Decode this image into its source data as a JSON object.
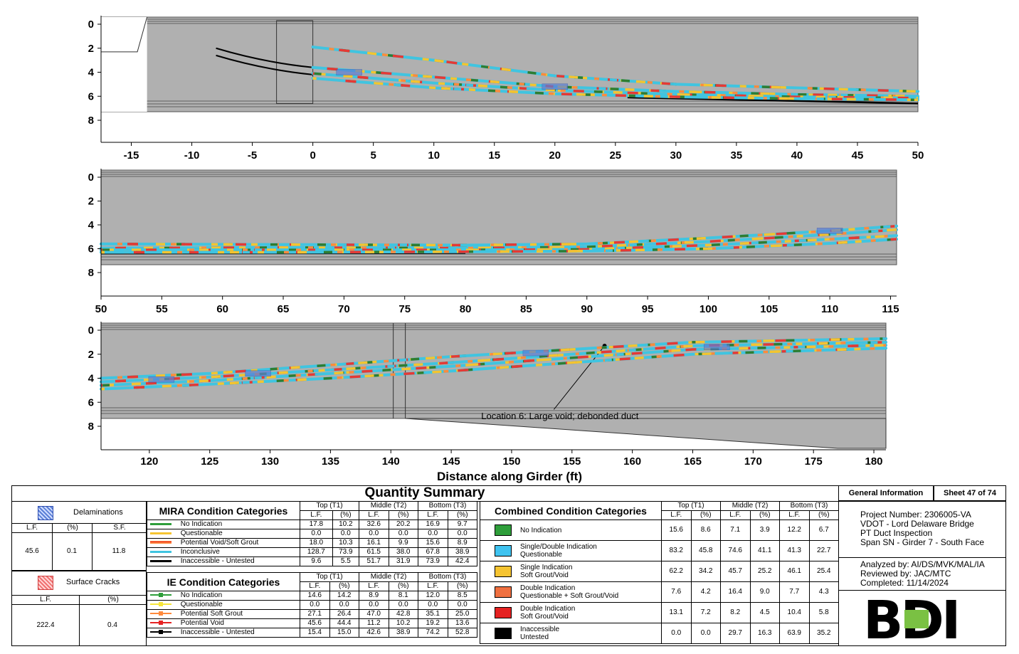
{
  "chart_data": [
    {
      "type": "line",
      "panel": "Span SN - Girder 7 - South Face (part 1)",
      "x_ticks": [
        "-15",
        "-10",
        "-5",
        "0",
        "5",
        "10",
        "15",
        "20",
        "25",
        "30",
        "35",
        "40",
        "45",
        "50"
      ],
      "y_ticks": [
        "0",
        "2",
        "4",
        "6",
        "8"
      ],
      "xlim": [
        -17.5,
        50
      ],
      "ylim": [
        0,
        9.5
      ],
      "y_inverted": true,
      "series": [
        {
          "values": [
            [
              0,
              1.9
            ],
            [
              10,
              3.0
            ],
            [
              20,
              4.3
            ],
            [
              30,
              5.0
            ],
            [
              40,
              5.3
            ],
            [
              50,
              5.6
            ]
          ]
        },
        {
          "values": [
            [
              0,
              3.6
            ],
            [
              10,
              4.4
            ],
            [
              20,
              5.2
            ],
            [
              30,
              5.6
            ],
            [
              40,
              5.85
            ],
            [
              50,
              6.0
            ]
          ]
        },
        {
          "values": [
            [
              0,
              4.1
            ],
            [
              10,
              4.9
            ],
            [
              20,
              5.5
            ],
            [
              30,
              5.85
            ],
            [
              40,
              6.05
            ],
            [
              50,
              6.15
            ]
          ]
        },
        {
          "values": [
            [
              0,
              4.5
            ],
            [
              10,
              5.3
            ],
            [
              20,
              5.8
            ],
            [
              30,
              6.05
            ],
            [
              40,
              6.2
            ],
            [
              50,
              6.3
            ]
          ]
        }
      ]
    },
    {
      "type": "line",
      "panel": "Span SN - Girder 7 - South Face (part 2)",
      "x_ticks": [
        "50",
        "55",
        "60",
        "65",
        "70",
        "75",
        "80",
        "85",
        "90",
        "95",
        "100",
        "105",
        "110",
        "115"
      ],
      "y_ticks": [
        "0",
        "2",
        "4",
        "6",
        "8"
      ],
      "xlim": [
        50,
        115.5
      ],
      "ylim": [
        0,
        9.5
      ],
      "y_inverted": true,
      "series": [
        {
          "values": [
            [
              50,
              5.6
            ],
            [
              65,
              5.65
            ],
            [
              80,
              5.7
            ],
            [
              90,
              5.6
            ],
            [
              100,
              5.1
            ],
            [
              110,
              4.5
            ],
            [
              115.5,
              4.1
            ]
          ]
        },
        {
          "values": [
            [
              50,
              5.95
            ],
            [
              65,
              5.9
            ],
            [
              80,
              5.95
            ],
            [
              90,
              5.85
            ],
            [
              100,
              5.4
            ],
            [
              110,
              4.8
            ],
            [
              115.5,
              4.4
            ]
          ]
        },
        {
          "values": [
            [
              50,
              6.1
            ],
            [
              65,
              6.1
            ],
            [
              80,
              6.1
            ],
            [
              90,
              6.05
            ],
            [
              100,
              5.7
            ],
            [
              110,
              5.2
            ],
            [
              115.5,
              4.9
            ]
          ]
        },
        {
          "values": [
            [
              50,
              6.3
            ],
            [
              65,
              6.3
            ],
            [
              80,
              6.25
            ],
            [
              90,
              6.2
            ],
            [
              100,
              6.0
            ],
            [
              110,
              5.55
            ],
            [
              115.5,
              5.2
            ]
          ]
        }
      ]
    },
    {
      "type": "line",
      "panel": "Span SN - Girder 7 - South Face (part 3)",
      "x_ticks": [
        "120",
        "125",
        "130",
        "135",
        "140",
        "145",
        "150",
        "155",
        "160",
        "165",
        "170",
        "175",
        "180"
      ],
      "y_ticks": [
        "0",
        "2",
        "4",
        "6",
        "8"
      ],
      "xlim": [
        116,
        181
      ],
      "ylim": [
        0,
        9.5
      ],
      "y_inverted": true,
      "annotation": "Location 6: Large void; debonded duct",
      "series": [
        {
          "values": [
            [
              116,
              4.0
            ],
            [
              125,
              3.6
            ],
            [
              135,
              2.9
            ],
            [
              145,
              2.2
            ],
            [
              155,
              1.6
            ],
            [
              165,
              1.0
            ],
            [
              181,
              0.7
            ]
          ]
        },
        {
          "values": [
            [
              116,
              4.3
            ],
            [
              125,
              3.9
            ],
            [
              135,
              3.3
            ],
            [
              145,
              2.7
            ],
            [
              155,
              2.0
            ],
            [
              165,
              1.3
            ],
            [
              181,
              1.0
            ]
          ]
        },
        {
          "values": [
            [
              116,
              4.6
            ],
            [
              125,
              4.2
            ],
            [
              135,
              3.6
            ],
            [
              145,
              3.0
            ],
            [
              155,
              2.3
            ],
            [
              165,
              1.6
            ],
            [
              181,
              1.25
            ]
          ]
        },
        {
          "values": [
            [
              116,
              4.9
            ],
            [
              125,
              4.5
            ],
            [
              135,
              4.0
            ],
            [
              145,
              3.4
            ],
            [
              155,
              2.7
            ],
            [
              165,
              2.0
            ],
            [
              181,
              1.5
            ]
          ]
        }
      ]
    }
  ],
  "axis": {
    "xlabel": "Distance along Girder (ft)"
  },
  "colors": {
    "plot_bg": "#b0b0b0",
    "no_indication": "#2e7d32",
    "questionable": "#f4c430",
    "potential_void": "#e53935",
    "inconclusive": "#40c4e0",
    "inaccessible": "#000000",
    "soft_grout": "#ff8a3d",
    "delam": "#5b7fd6"
  },
  "summary": {
    "title": "Quantity Summary",
    "delaminations": {
      "label": "Delaminations",
      "cols": [
        "L.F.",
        "(%)",
        "S.F."
      ],
      "values": [
        "45.6",
        "0.1",
        "11.8"
      ]
    },
    "surface_cracks": {
      "label": "Surface Cracks",
      "cols": [
        "L.F.",
        "(%)"
      ],
      "values": [
        "222.4",
        "0.4"
      ]
    },
    "mira": {
      "title": "MIRA Condition Categories",
      "groups": [
        "Top (T1)",
        "Middle (T2)",
        "Bottom (T3)"
      ],
      "sub": [
        "L.F.",
        "(%)"
      ],
      "rows": [
        {
          "label": "No Indication",
          "values": [
            "17.8",
            "10.2",
            "32.6",
            "20.2",
            "16.9",
            "9.7"
          ]
        },
        {
          "label": "Questionable",
          "values": [
            "0.0",
            "0.0",
            "0.0",
            "0.0",
            "0.0",
            "0.0"
          ]
        },
        {
          "label": "Potential Void/Soft Grout",
          "values": [
            "18.0",
            "10.3",
            "16.1",
            "9.9",
            "15.6",
            "8.9"
          ]
        },
        {
          "label": "Inconclusive",
          "values": [
            "128.7",
            "73.9",
            "61.5",
            "38.0",
            "67.8",
            "38.9"
          ]
        },
        {
          "label": "Inaccessible - Untested",
          "values": [
            "9.6",
            "5.5",
            "51.7",
            "31.9",
            "73.9",
            "42.4"
          ]
        }
      ]
    },
    "ie": {
      "title": "IE Condition Categories",
      "groups": [
        "Top (T1)",
        "Middle (T2)",
        "Bottom (T3)"
      ],
      "sub": [
        "L.F.",
        "(%)"
      ],
      "rows": [
        {
          "label": "No Indication",
          "values": [
            "14.6",
            "14.2",
            "8.9",
            "8.1",
            "12.0",
            "8.5"
          ]
        },
        {
          "label": "Questionable",
          "values": [
            "0.0",
            "0.0",
            "0.0",
            "0.0",
            "0.0",
            "0.0"
          ]
        },
        {
          "label": "Potential Soft Grout",
          "values": [
            "27.1",
            "26.4",
            "47.0",
            "42.8",
            "35.1",
            "25.0"
          ]
        },
        {
          "label": "Potential Void",
          "values": [
            "45.6",
            "44.4",
            "11.2",
            "10.2",
            "19.2",
            "13.6"
          ]
        },
        {
          "label": "Inaccessible - Untested",
          "values": [
            "15.4",
            "15.0",
            "42.6",
            "38.9",
            "74.2",
            "52.8"
          ]
        }
      ]
    },
    "combined": {
      "title": "Combined Condition Categories",
      "groups": [
        "Top (T1)",
        "Middle (T2)",
        "Bottom (T3)"
      ],
      "sub": [
        "L.F.",
        "(%)"
      ],
      "rows": [
        {
          "label1": "No Indication",
          "label2": "",
          "color": "#2e9e3a",
          "values": [
            "15.6",
            "8.6",
            "7.1",
            "3.9",
            "12.2",
            "6.7"
          ]
        },
        {
          "label1": "Single/Double Indication",
          "label2": "Questionable",
          "color": "#3fc3f0",
          "values": [
            "83.2",
            "45.8",
            "74.6",
            "41.1",
            "41.3",
            "22.7"
          ]
        },
        {
          "label1": "Single Indication",
          "label2": "Soft Grout/Void",
          "color": "#f6c431",
          "values": [
            "62.2",
            "34.2",
            "45.7",
            "25.2",
            "46.1",
            "25.4"
          ]
        },
        {
          "label1": "Double Indication",
          "label2": "Questionable + Soft Grout/Void",
          "color": "#f07040",
          "values": [
            "7.6",
            "4.2",
            "16.4",
            "9.0",
            "7.7",
            "4.3"
          ]
        },
        {
          "label1": "Double Indication",
          "label2": "Soft Grout/Void",
          "color": "#e52222",
          "values": [
            "13.1",
            "7.2",
            "8.2",
            "4.5",
            "10.4",
            "5.8"
          ]
        },
        {
          "label1": "Inaccessible",
          "label2": "Untested",
          "color": "#000000",
          "values": [
            "0.0",
            "0.0",
            "29.7",
            "16.3",
            "63.9",
            "35.2"
          ]
        }
      ]
    },
    "general": {
      "title": "General Information",
      "sheet": "Sheet 47 of 74",
      "project": [
        "Project Number: 2306005-VA",
        "VDOT - Lord Delaware Bridge",
        "PT Duct Inspection",
        "Span SN - Girder 7 - South Face"
      ],
      "analysis": [
        "Analyzed by: AI/DS/MVK/MAL/IA",
        "Reviewed by: JAC/MTC",
        "Completed: 11/14/2024"
      ],
      "logo": "BDI"
    }
  }
}
